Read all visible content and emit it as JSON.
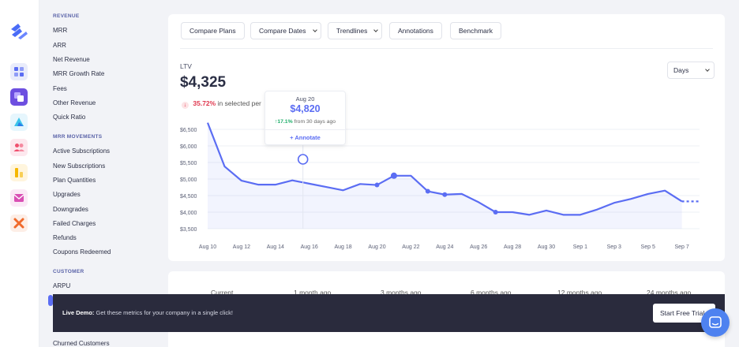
{
  "sidebar": {
    "sections": [
      {
        "title": "REVENUE",
        "items": [
          "MRR",
          "ARR",
          "Net Revenue",
          "MRR Growth Rate",
          "Fees",
          "Other Revenue",
          "Quick Ratio"
        ]
      },
      {
        "title": "MRR MOVEMENTS",
        "items": [
          "Active Subscriptions",
          "New Subscriptions",
          "Plan Quantities",
          "Upgrades",
          "Downgrades",
          "Failed Charges",
          "Refunds",
          "Coupons Redeemed"
        ]
      },
      {
        "title": "CUSTOMER",
        "items": [
          "ARPU"
        ]
      }
    ],
    "churned": "Churned Customers"
  },
  "toolbar": {
    "compare_plans": "Compare Plans",
    "compare_dates": "Compare Dates",
    "trendlines": "Trendlines",
    "annotations": "Annotations",
    "benchmark": "Benchmark"
  },
  "metric": {
    "label": "LTV",
    "value": "$4,325",
    "change_pct": "35.72%",
    "change_text": "in selected per",
    "interval": "Days"
  },
  "tooltip": {
    "date": "Aug 20",
    "value": "$4,820",
    "change_pct": "↑17.1%",
    "change_text": "from 30 days ago",
    "annotate": "+ Annotate"
  },
  "chart_data": {
    "type": "line",
    "x": [
      "Aug 10",
      "Aug 11",
      "Aug 12",
      "Aug 13",
      "Aug 14",
      "Aug 15",
      "Aug 16",
      "Aug 17",
      "Aug 18",
      "Aug 19",
      "Aug 20",
      "Aug 21",
      "Aug 22",
      "Aug 23",
      "Aug 24",
      "Aug 25",
      "Aug 26",
      "Aug 27",
      "Aug 28",
      "Aug 29",
      "Aug 30",
      "Aug 31",
      "Sep 1",
      "Sep 2",
      "Sep 3",
      "Sep 4",
      "Sep 5",
      "Sep 6",
      "Sep 7",
      "Sep 8"
    ],
    "x_tick_labels": [
      "Aug 10",
      "Aug 12",
      "Aug 14",
      "Aug 16",
      "Aug 18",
      "Aug 20",
      "Aug 22",
      "Aug 24",
      "Aug 26",
      "Aug 28",
      "Aug 30",
      "Sep 1",
      "Sep 3",
      "Sep 5",
      "Sep 7"
    ],
    "y_tick_labels": [
      "$6,500",
      "$6,000",
      "$5,500",
      "$5,000",
      "$4,500",
      "$4,000",
      "$3,500"
    ],
    "series": [
      {
        "values": [
          6700,
          5380,
          4950,
          4830,
          4830,
          4960,
          4860,
          4760,
          4660,
          4850,
          4820,
          5100,
          5100,
          4630,
          4530,
          4550,
          4300,
          4000,
          4000,
          3920,
          4050,
          3920,
          3920,
          4080,
          4280,
          4400,
          4550,
          4650,
          4325,
          4325
        ]
      }
    ],
    "ylim": [
      3500,
      6500
    ],
    "projected_from_index": 28,
    "highlight_index": 6,
    "grid": true,
    "color": "#5b6df3"
  },
  "metrics_table": {
    "headers": [
      "Current",
      "1 month ago",
      "3 months ago",
      "6 months ago",
      "12 months ago",
      "24 months ago"
    ]
  },
  "banner": {
    "title": "Live Demo:",
    "text": "Get these metrics for your company in a single click!",
    "cta": "Start Free Trial"
  },
  "colors": {
    "accent": "#5b6df3",
    "negative": "#e0384f",
    "positive": "#1fae6a",
    "banner": "#2a2b3d"
  }
}
